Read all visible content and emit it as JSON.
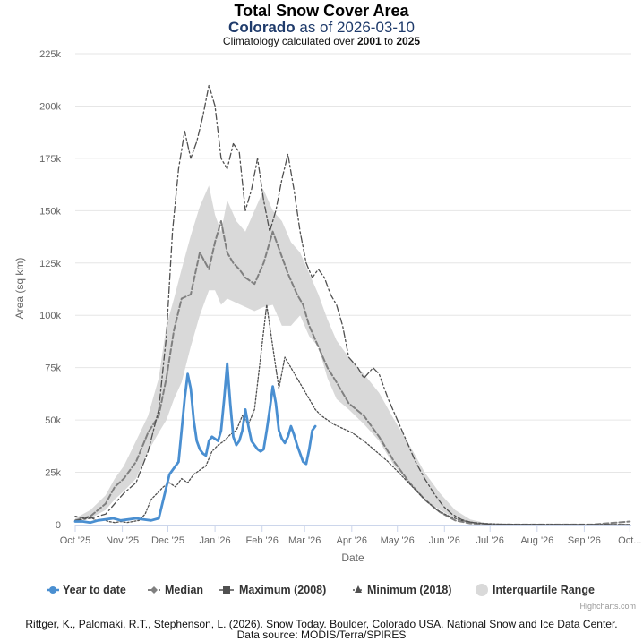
{
  "header": {
    "title": "Total Snow Cover Area",
    "subtitle_region": "Colorado",
    "subtitle_mid": " as of ",
    "subtitle_date": "2026-03-10",
    "climo_prefix": "Climatology calculated over ",
    "climo_start": "2001",
    "climo_mid": " to ",
    "climo_end": "2025"
  },
  "colors": {
    "ytd": "#4a8fd1",
    "median": "#808080",
    "maximum": "#505050",
    "minimum": "#505050",
    "iqr": "#d9d9d9",
    "grid": "#e6e6e6"
  },
  "chart_data": {
    "type": "line",
    "title": "Total Snow Cover Area",
    "subtitle": "Colorado as of 2026-03-10",
    "xlabel": "Date",
    "ylabel": "Area (sq km)",
    "xlim": [
      0,
      366
    ],
    "ylim": [
      0,
      225000
    ],
    "x_ticks": [
      {
        "day": 0,
        "label": "Oct '25"
      },
      {
        "day": 31,
        "label": "Nov '25"
      },
      {
        "day": 61,
        "label": "Dec '25"
      },
      {
        "day": 92,
        "label": "Jan '26"
      },
      {
        "day": 123,
        "label": "Feb '26"
      },
      {
        "day": 151,
        "label": "Mar '26"
      },
      {
        "day": 182,
        "label": "Apr '26"
      },
      {
        "day": 212,
        "label": "May '26"
      },
      {
        "day": 243,
        "label": "Jun '26"
      },
      {
        "day": 273,
        "label": "Jul '26"
      },
      {
        "day": 304,
        "label": "Aug '26"
      },
      {
        "day": 335,
        "label": "Sep '26"
      },
      {
        "day": 365,
        "label": "Oct..."
      }
    ],
    "y_ticks": [
      {
        "value": 0,
        "label": "0"
      },
      {
        "value": 25000,
        "label": "25k"
      },
      {
        "value": 50000,
        "label": "50k"
      },
      {
        "value": 75000,
        "label": "75k"
      },
      {
        "value": 100000,
        "label": "100k"
      },
      {
        "value": 125000,
        "label": "125k"
      },
      {
        "value": 150000,
        "label": "150k"
      },
      {
        "value": 175000,
        "label": "175k"
      },
      {
        "value": 200000,
        "label": "200k"
      },
      {
        "value": 225000,
        "label": "225k"
      }
    ],
    "series": [
      {
        "name": "Interquartile Range",
        "kind": "band",
        "x": [
          0,
          10,
          20,
          26,
          32,
          40,
          48,
          55,
          60,
          65,
          70,
          76,
          82,
          88,
          92,
          96,
          100,
          106,
          112,
          118,
          124,
          130,
          136,
          142,
          148,
          154,
          160,
          166,
          172,
          180,
          190,
          200,
          210,
          220,
          230,
          240,
          250,
          260,
          270,
          280,
          290,
          300,
          320,
          340,
          365
        ],
        "low": [
          1000,
          3000,
          7000,
          12000,
          16000,
          22000,
          35000,
          44000,
          50000,
          60000,
          68000,
          85000,
          100000,
          112000,
          112000,
          105000,
          108000,
          106000,
          104000,
          102000,
          104000,
          105000,
          95000,
          95000,
          100000,
          90000,
          85000,
          70000,
          60000,
          55000,
          48000,
          40000,
          28000,
          20000,
          12000,
          7000,
          3000,
          1000,
          300,
          100,
          50,
          50,
          50,
          50,
          50
        ],
        "high": [
          3000,
          7000,
          14000,
          22000,
          28000,
          40000,
          52000,
          70000,
          95000,
          108000,
          122000,
          138000,
          152000,
          162000,
          148000,
          140000,
          155000,
          145000,
          140000,
          150000,
          160000,
          150000,
          145000,
          135000,
          130000,
          120000,
          110000,
          98000,
          88000,
          80000,
          72000,
          63000,
          50000,
          38000,
          25000,
          15000,
          7000,
          2500,
          800,
          200,
          100,
          80,
          80,
          80,
          80
        ]
      },
      {
        "name": "Median",
        "kind": "line",
        "x": [
          0,
          10,
          20,
          26,
          32,
          40,
          48,
          55,
          60,
          65,
          70,
          76,
          82,
          88,
          92,
          96,
          100,
          104,
          108,
          112,
          118,
          124,
          130,
          136,
          140,
          146,
          150,
          154,
          160,
          166,
          172,
          180,
          190,
          200,
          210,
          220,
          230,
          240,
          250,
          260,
          270,
          280,
          290,
          300,
          320,
          340,
          365
        ],
        "y": [
          2000,
          4000,
          10000,
          18000,
          22000,
          30000,
          44000,
          52000,
          70000,
          93000,
          108000,
          110000,
          130000,
          122000,
          135000,
          145000,
          130000,
          125000,
          122000,
          118000,
          115000,
          125000,
          140000,
          128000,
          120000,
          110000,
          105000,
          95000,
          85000,
          75000,
          68000,
          58000,
          52000,
          42000,
          30000,
          20000,
          12000,
          6000,
          2000,
          600,
          200,
          80,
          50,
          50,
          50,
          50,
          1500
        ]
      },
      {
        "name": "Maximum (2008)",
        "kind": "line",
        "x": [
          0,
          10,
          20,
          26,
          32,
          40,
          48,
          55,
          60,
          64,
          68,
          72,
          76,
          80,
          84,
          88,
          92,
          96,
          100,
          104,
          108,
          112,
          116,
          120,
          124,
          128,
          132,
          136,
          140,
          144,
          148,
          152,
          156,
          160,
          164,
          168,
          172,
          176,
          180,
          186,
          190,
          196,
          200,
          206,
          212,
          218,
          224,
          230,
          236,
          242,
          248,
          254,
          260,
          266,
          272,
          280,
          290,
          300,
          320,
          340,
          365
        ],
        "y": [
          2000,
          3000,
          5000,
          10000,
          15000,
          20000,
          35000,
          55000,
          90000,
          140000,
          170000,
          188000,
          175000,
          183000,
          195000,
          210000,
          200000,
          175000,
          170000,
          182000,
          178000,
          150000,
          160000,
          175000,
          155000,
          140000,
          150000,
          165000,
          177000,
          160000,
          140000,
          125000,
          118000,
          122000,
          118000,
          110000,
          105000,
          95000,
          80000,
          75000,
          70000,
          75000,
          72000,
          60000,
          50000,
          40000,
          30000,
          22000,
          15000,
          9000,
          5000,
          2500,
          1200,
          600,
          300,
          100,
          50,
          50,
          50,
          50,
          50
        ]
      },
      {
        "name": "Minimum (2018)",
        "kind": "line",
        "x": [
          0,
          6,
          10,
          14,
          18,
          22,
          26,
          30,
          34,
          38,
          42,
          46,
          50,
          54,
          58,
          62,
          66,
          70,
          74,
          78,
          82,
          86,
          90,
          94,
          98,
          102,
          106,
          110,
          114,
          118,
          122,
          126,
          130,
          134,
          138,
          142,
          146,
          150,
          154,
          158,
          162,
          166,
          170,
          176,
          182,
          190,
          198,
          206,
          214,
          222,
          230,
          238,
          246,
          254,
          262,
          270,
          280,
          300,
          340,
          365
        ],
        "y": [
          4000,
          3000,
          3500,
          2000,
          2500,
          1500,
          1000,
          1500,
          1000,
          1500,
          2000,
          5000,
          12000,
          15000,
          18000,
          20000,
          18000,
          22000,
          20000,
          24000,
          26000,
          28000,
          35000,
          38000,
          40000,
          43000,
          45000,
          52000,
          48000,
          55000,
          80000,
          105000,
          85000,
          65000,
          80000,
          75000,
          70000,
          65000,
          60000,
          55000,
          52000,
          50000,
          48000,
          46000,
          44000,
          40000,
          35000,
          30000,
          24000,
          18000,
          12000,
          7000,
          4000,
          2000,
          1000,
          500,
          200,
          100,
          50,
          50
        ]
      },
      {
        "name": "Year to date",
        "kind": "line",
        "x": [
          0,
          5,
          10,
          15,
          20,
          25,
          30,
          35,
          40,
          45,
          50,
          55,
          60,
          62,
          64,
          66,
          68,
          70,
          72,
          74,
          76,
          78,
          80,
          82,
          84,
          86,
          88,
          90,
          92,
          94,
          96,
          98,
          100,
          102,
          104,
          106,
          108,
          110,
          112,
          114,
          116,
          118,
          120,
          122,
          124,
          126,
          128,
          130,
          132,
          134,
          136,
          138,
          140,
          142,
          144,
          146,
          148,
          150,
          152,
          154,
          156,
          158
        ],
        "y": [
          1500,
          1500,
          1000,
          2000,
          2500,
          3000,
          2000,
          2500,
          3000,
          2500,
          2000,
          3000,
          18000,
          24000,
          26000,
          28000,
          30000,
          45000,
          60000,
          72000,
          65000,
          50000,
          40000,
          36000,
          34000,
          33000,
          40000,
          42000,
          41000,
          40000,
          45000,
          60000,
          77000,
          58000,
          42000,
          38000,
          40000,
          45000,
          55000,
          47000,
          40000,
          38000,
          36000,
          35000,
          36000,
          45000,
          55000,
          66000,
          58000,
          45000,
          41000,
          39000,
          42000,
          47000,
          43000,
          38000,
          34000,
          30000,
          29000,
          36000,
          45000,
          47000
        ]
      }
    ],
    "legend": [
      "Year to date",
      "Median",
      "Maximum (2008)",
      "Minimum (2018)",
      "Interquartile Range"
    ],
    "legend_position": "bottom"
  },
  "credits": "Highcharts.com",
  "caption": {
    "line1": "Rittger, K., Palomaki, R.T., Stephenson, L. (2026). Snow Today. Boulder, Colorado USA. National Snow and Ice Data Center.",
    "line2": "Data source: MODIS/Terra/SPIRES"
  }
}
